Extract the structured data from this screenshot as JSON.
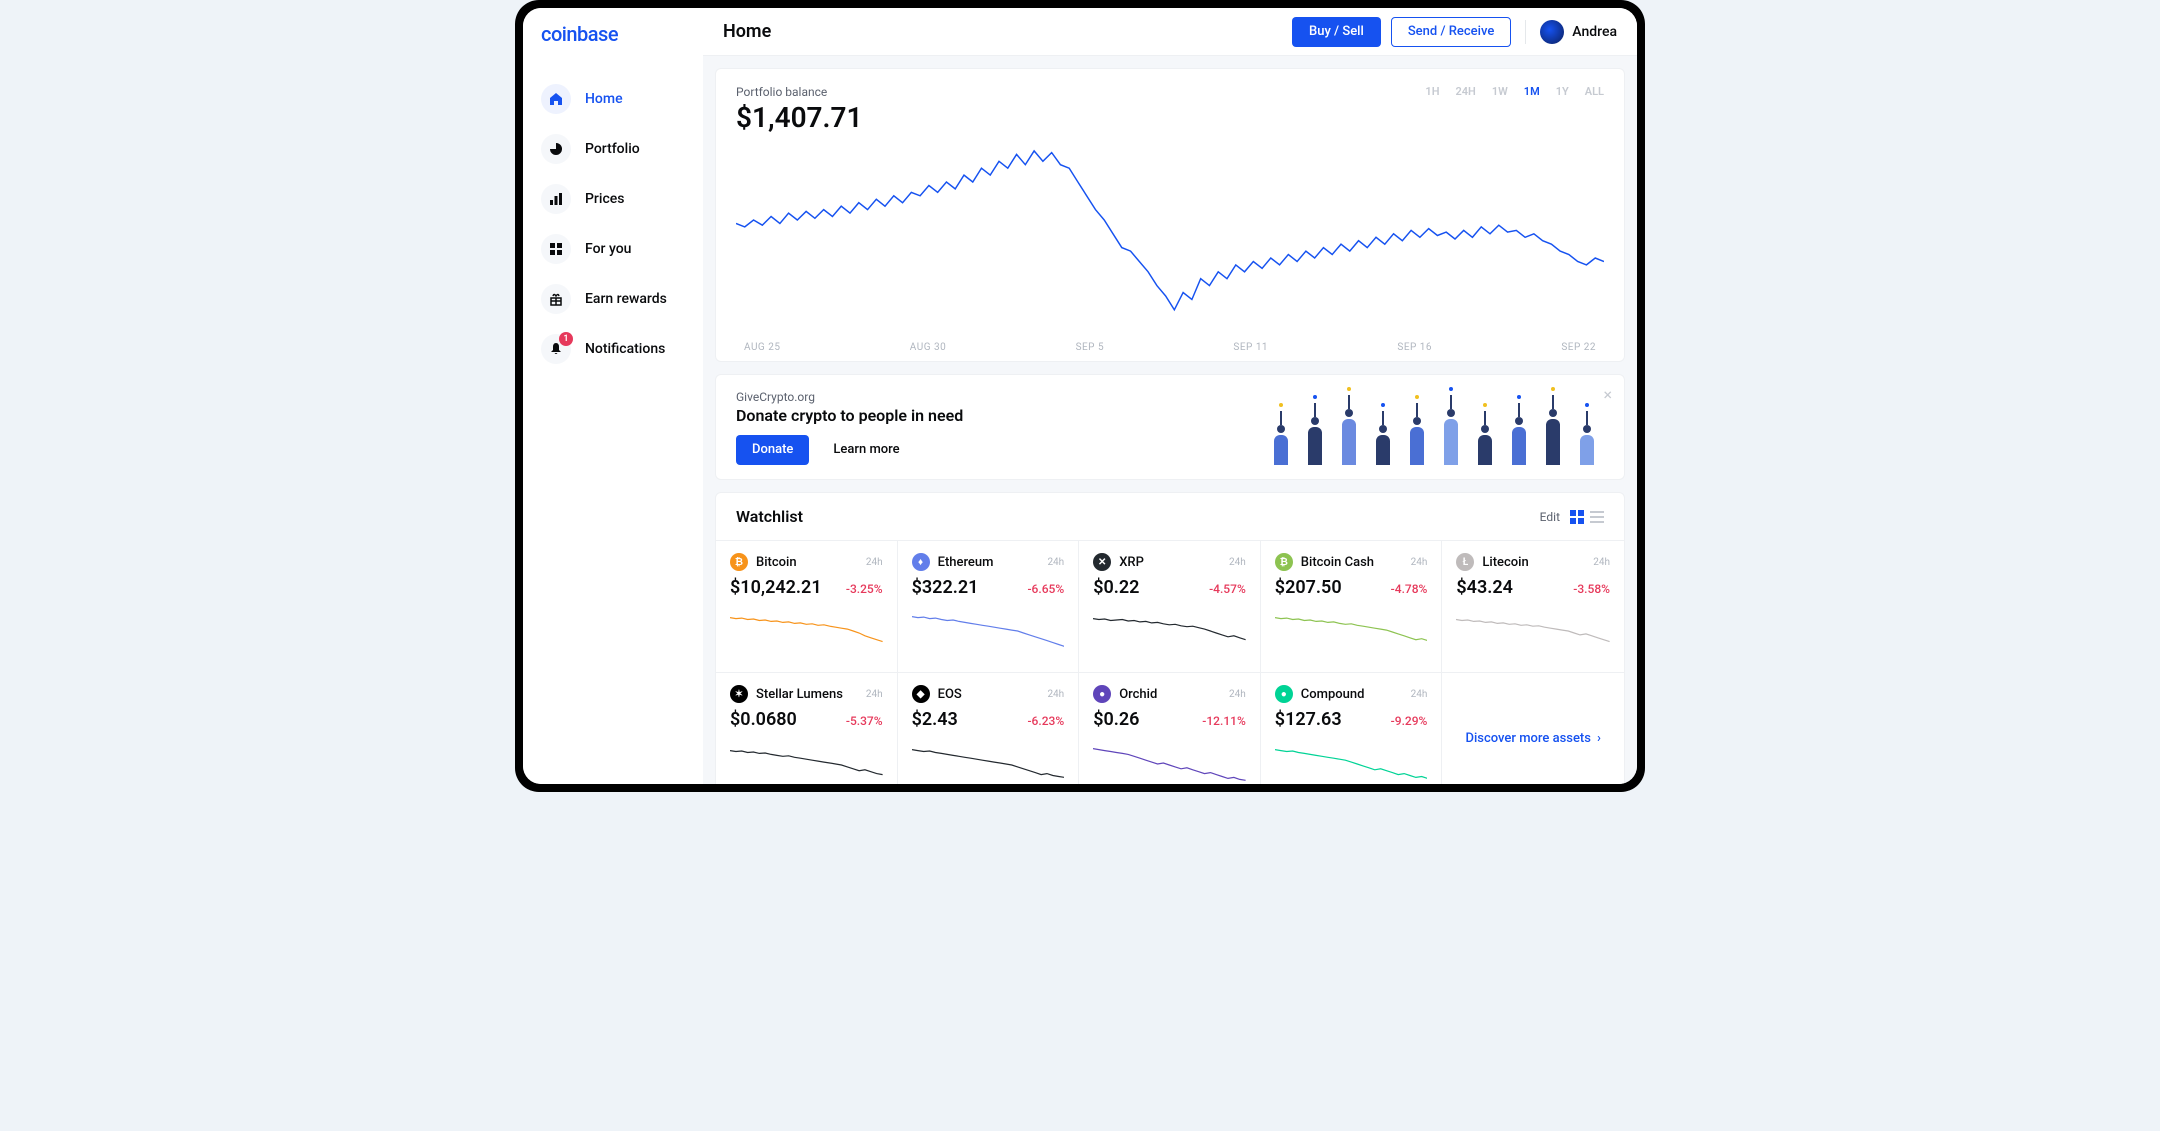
{
  "brand": "coinbase",
  "page_title": "Home",
  "topbar": {
    "buy_sell_label": "Buy / Sell",
    "send_receive_label": "Send / Receive",
    "username": "Andrea"
  },
  "sidebar": {
    "items": [
      {
        "label": "Home",
        "icon": "home",
        "active": true
      },
      {
        "label": "Portfolio",
        "icon": "pie"
      },
      {
        "label": "Prices",
        "icon": "chart"
      },
      {
        "label": "For you",
        "icon": "grid"
      },
      {
        "label": "Earn rewards",
        "icon": "gift"
      },
      {
        "label": "Notifications",
        "icon": "bell",
        "badge": "1"
      }
    ]
  },
  "portfolio_chart": {
    "label": "Portfolio balance",
    "value": "$1,407.71",
    "timeframes": [
      "1H",
      "24H",
      "1W",
      "1M",
      "1Y",
      "ALL"
    ],
    "active_timeframe": "1M",
    "x_labels": [
      "AUG 25",
      "AUG 30",
      "SEP 5",
      "SEP 11",
      "SEP 16",
      "SEP 22"
    ],
    "line_color": "#1652f0",
    "background": "#ffffff",
    "y_range": [
      1100,
      1650
    ],
    "series": [
      1420,
      1410,
      1430,
      1415,
      1440,
      1420,
      1450,
      1430,
      1455,
      1435,
      1460,
      1440,
      1470,
      1450,
      1480,
      1460,
      1490,
      1470,
      1500,
      1480,
      1510,
      1500,
      1530,
      1510,
      1540,
      1520,
      1560,
      1540,
      1580,
      1560,
      1600,
      1580,
      1620,
      1590,
      1630,
      1600,
      1625,
      1590,
      1580,
      1540,
      1500,
      1460,
      1430,
      1390,
      1350,
      1340,
      1310,
      1280,
      1240,
      1210,
      1170,
      1220,
      1200,
      1260,
      1240,
      1280,
      1260,
      1300,
      1280,
      1310,
      1290,
      1320,
      1300,
      1330,
      1310,
      1340,
      1320,
      1350,
      1330,
      1360,
      1340,
      1370,
      1350,
      1380,
      1360,
      1390,
      1370,
      1400,
      1380,
      1405,
      1385,
      1395,
      1375,
      1400,
      1380,
      1410,
      1390,
      1415,
      1395,
      1400,
      1380,
      1390,
      1370,
      1360,
      1340,
      1330,
      1310,
      1300,
      1320,
      1310
    ]
  },
  "donate_banner": {
    "org": "GiveCrypto.org",
    "title": "Donate crypto to people in need",
    "donate_label": "Donate",
    "learn_more_label": "Learn more",
    "people_colors": [
      "#4a6fd4",
      "#2a3b6a",
      "#6b8ae0",
      "#2a3b6a",
      "#4a6fd4",
      "#7fa0e8",
      "#2a3b6a",
      "#4a6fd4",
      "#2a3b6a",
      "#7fa0e8"
    ],
    "confetti_colors": [
      "#f0c020",
      "#1652f0",
      "#f0c020",
      "#1652f0",
      "#f0c020",
      "#1652f0",
      "#f0c020",
      "#1652f0",
      "#f0c020",
      "#1652f0"
    ]
  },
  "watchlist": {
    "title": "Watchlist",
    "edit_label": "Edit",
    "timeframe_label": "24h",
    "discover_label": "Discover more assets",
    "assets": [
      {
        "name": "Bitcoin",
        "icon_bg": "#f7931a",
        "icon_sym": "₿",
        "price": "$10,242.21",
        "change": "-3.25%",
        "spark_color": "#f7931a",
        "spark": [
          80,
          78,
          79,
          76,
          77,
          74,
          75,
          72,
          73,
          70,
          71,
          68,
          69,
          66,
          67,
          64,
          65,
          62,
          60,
          58,
          56,
          52,
          48,
          42,
          38,
          34,
          30
        ]
      },
      {
        "name": "Ethereum",
        "icon_bg": "#627eea",
        "icon_sym": "♦",
        "price": "$322.21",
        "change": "-6.65%",
        "spark_color": "#627eea",
        "spark": [
          82,
          80,
          81,
          78,
          79,
          76,
          74,
          75,
          72,
          70,
          68,
          66,
          64,
          62,
          60,
          58,
          56,
          54,
          52,
          48,
          44,
          40,
          36,
          32,
          28,
          24,
          20
        ]
      },
      {
        "name": "XRP",
        "icon_bg": "#23292f",
        "icon_sym": "✕",
        "price": "$0.22",
        "change": "-4.57%",
        "spark_color": "#23292f",
        "spark": [
          78,
          76,
          77,
          74,
          75,
          76,
          73,
          74,
          71,
          72,
          69,
          70,
          67,
          65,
          66,
          63,
          61,
          62,
          59,
          56,
          52,
          48,
          44,
          40,
          42,
          38,
          34
        ]
      },
      {
        "name": "Bitcoin Cash",
        "icon_bg": "#8dc351",
        "icon_sym": "₿",
        "price": "$207.50",
        "change": "-4.78%",
        "spark_color": "#8dc351",
        "spark": [
          80,
          78,
          79,
          76,
          77,
          74,
          75,
          72,
          73,
          70,
          71,
          68,
          66,
          67,
          64,
          62,
          60,
          58,
          56,
          54,
          50,
          46,
          42,
          38,
          34,
          36,
          32
        ]
      },
      {
        "name": "Litecoin",
        "icon_bg": "#bfbbbb",
        "icon_sym": "Ł",
        "price": "$43.24",
        "change": "-3.58%",
        "spark_color": "#bfbbbb",
        "spark": [
          76,
          74,
          75,
          72,
          73,
          70,
          71,
          68,
          69,
          66,
          67,
          64,
          65,
          62,
          63,
          60,
          58,
          56,
          54,
          52,
          48,
          44,
          46,
          42,
          38,
          34,
          30
        ]
      },
      {
        "name": "Stellar Lumens",
        "icon_bg": "#000000",
        "icon_sym": "✶",
        "price": "$0.0680",
        "change": "-5.37%",
        "spark_color": "#23292f",
        "spark": [
          78,
          76,
          77,
          74,
          75,
          72,
          73,
          70,
          68,
          66,
          67,
          64,
          62,
          60,
          58,
          56,
          54,
          52,
          50,
          48,
          44,
          40,
          36,
          38,
          34,
          30,
          28
        ]
      },
      {
        "name": "EOS",
        "icon_bg": "#000000",
        "icon_sym": "◆",
        "price": "$2.43",
        "change": "-6.23%",
        "spark_color": "#23292f",
        "spark": [
          80,
          78,
          76,
          77,
          74,
          72,
          70,
          68,
          66,
          64,
          62,
          60,
          58,
          56,
          54,
          52,
          50,
          48,
          44,
          40,
          36,
          32,
          28,
          30,
          26,
          24,
          22
        ]
      },
      {
        "name": "Orchid",
        "icon_bg": "#5f45ba",
        "icon_sym": "●",
        "price": "$0.26",
        "change": "-12.11%",
        "spark_color": "#5f45ba",
        "spark": [
          82,
          80,
          78,
          76,
          74,
          72,
          70,
          66,
          62,
          58,
          54,
          50,
          52,
          48,
          44,
          40,
          42,
          38,
          34,
          30,
          32,
          28,
          24,
          20,
          22,
          18,
          16
        ]
      },
      {
        "name": "Compound",
        "icon_bg": "#00d395",
        "icon_sym": "●",
        "price": "$127.63",
        "change": "-9.29%",
        "spark_color": "#00d395",
        "spark": [
          80,
          78,
          76,
          77,
          74,
          72,
          70,
          68,
          66,
          64,
          62,
          60,
          58,
          54,
          50,
          46,
          42,
          38,
          40,
          36,
          32,
          28,
          30,
          26,
          22,
          24,
          20
        ]
      }
    ]
  }
}
